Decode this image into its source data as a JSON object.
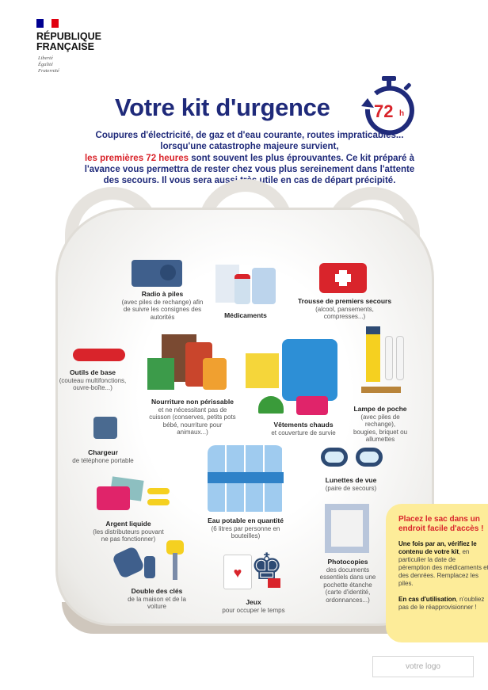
{
  "header": {
    "org_line1": "RÉPUBLIQUE",
    "org_line2": "FRANÇAISE",
    "motto": [
      "Liberté",
      "Égalité",
      "Fraternité"
    ],
    "flag_colors": [
      "#000091",
      "#ffffff",
      "#e1000f"
    ]
  },
  "title": "Votre kit d'urgence",
  "timer": {
    "label": "72",
    "unit": "h",
    "icon": "stopwatch-icon"
  },
  "intro": {
    "part1": "Coupures d'électricité, de gaz et d'eau courante, routes impraticables... lorsqu'une catastrophe majeure survient,",
    "highlight": "les premières 72 heures",
    "part2": "sont souvent les plus éprouvantes. Ce kit préparé à l'avance vous permettra de rester chez vous plus sereinement dans l'attente des secours. Il vous sera aussi très utile en cas de départ précipité."
  },
  "items": [
    {
      "title": "Radio à piles",
      "desc": "(avec piles de rechange) afin de suivre les consignes des autorités",
      "icon": "radio-icon"
    },
    {
      "title": "Médicaments",
      "desc": "",
      "icon": "medicine-icon"
    },
    {
      "title": "Trousse de premiers secours",
      "desc": "(alcool, pansements, compresses...)",
      "icon": "first-aid-kit-icon"
    },
    {
      "title": "Outils de base",
      "desc": "(couteau multifonctions, ouvre-boîte...)",
      "icon": "multitool-icon"
    },
    {
      "title": "Nourriture non périssable",
      "desc": "et ne nécessitant pas de cuisson (conserves, petits pots bébé, nourriture pour animaux...)",
      "icon": "food-icon"
    },
    {
      "title": "Vêtements chauds",
      "desc": "et couverture de survie",
      "icon": "sweater-icon"
    },
    {
      "title": "Lampe de poche",
      "desc": "(avec piles de rechange), bougies, briquet ou allumettes",
      "icon": "flashlight-icon"
    },
    {
      "title": "Chargeur",
      "desc": "de téléphone portable",
      "icon": "charger-icon"
    },
    {
      "title": "Eau potable en quantité",
      "desc": "(6 litres par personne en bouteilles)",
      "icon": "water-bottles-icon"
    },
    {
      "title": "Lunettes de vue",
      "desc": "(paire de secours)",
      "icon": "glasses-icon"
    },
    {
      "title": "Argent liquide",
      "desc": "(les distributeurs pouvant ne pas fonctionner)",
      "icon": "wallet-icon"
    },
    {
      "title": "Photocopies",
      "desc": "des documents essentiels dans une pochette étanche (carte d'identité, ordonnances...)",
      "icon": "documents-icon"
    },
    {
      "title": "Double des clés",
      "desc": "de la maison et de la voiture",
      "icon": "keys-icon"
    },
    {
      "title": "Jeux",
      "desc": "pour occuper le temps",
      "icon": "games-icon"
    }
  ],
  "note": {
    "headline": "Placez le sac dans un endroit facile d'accès !",
    "p1_bold": "Une fois par an, vérifiez le contenu de votre kit",
    "p1": ", en particulier la date de péremption des médicaments et des denrées. Remplacez les piles.",
    "p2_bold": "En cas d'utilisation",
    "p2": ", n'oubliez pas de le réapprovisionner !"
  },
  "logo_placeholder": "votre logo",
  "colors": {
    "title": "#1f2a7a",
    "accent_red": "#d9242b",
    "note_bg": "#fdec99"
  }
}
